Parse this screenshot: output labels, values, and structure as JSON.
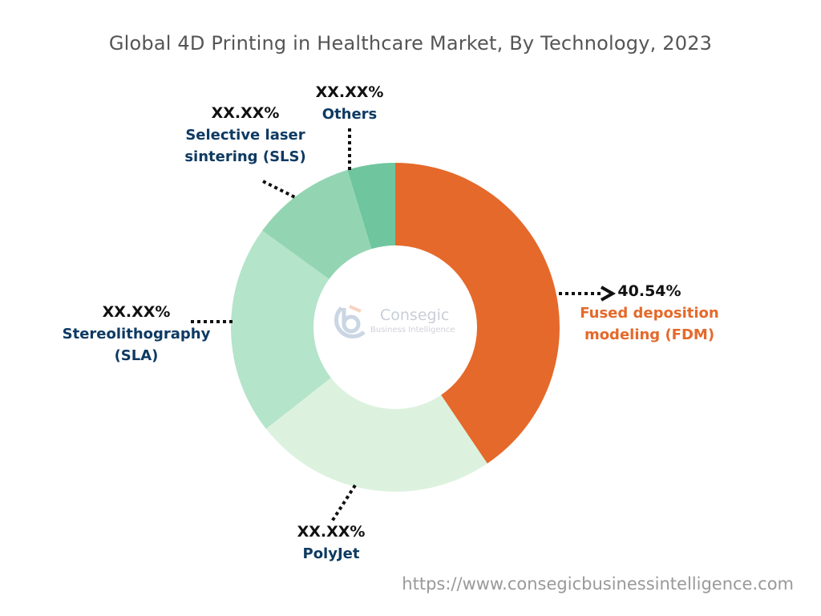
{
  "chart_data": {
    "type": "pie",
    "variant": "donut",
    "title": "Global 4D Printing in Healthcare Market, By Technology, 2023",
    "slices": [
      {
        "name": "Fused deposition modeling (FDM)",
        "label": "40.54%",
        "value": 40.54,
        "color": "#e5692a",
        "name_color": "#e5692a"
      },
      {
        "name": "PolyJet",
        "label": "XX.XX%",
        "value": 23.86,
        "color": "#dcf2df",
        "name_color": "#0e3a63"
      },
      {
        "name": "Stereolithography (SLA)",
        "label": "XX.XX%",
        "value": 20.6,
        "color": "#b4e4ca",
        "name_color": "#0e3a63"
      },
      {
        "name": "Selective laser sintering (SLS)",
        "label": "XX.XX%",
        "value": 10.3,
        "color": "#93d5b3",
        "name_color": "#0e3a63"
      },
      {
        "name": "Others",
        "label": "XX.XX%",
        "value": 4.7,
        "color": "#6fc59e",
        "name_color": "#0e3a63"
      }
    ],
    "start": "top",
    "direction": "clockwise"
  },
  "labels": {
    "fdm": {
      "pct": "40.54%",
      "line1": "Fused deposition",
      "line2": "modeling (FDM)"
    },
    "polyjet": {
      "pct": "XX.XX%",
      "line1": "PolyJet"
    },
    "sla": {
      "pct": "XX.XX%",
      "line1": "Stereolithography",
      "line2": "(SLA)"
    },
    "sls": {
      "pct": "XX.XX%",
      "line1": "Selective laser",
      "line2": "sintering (SLS)"
    },
    "others": {
      "pct": "XX.XX%",
      "line1": "Others"
    }
  },
  "logo": {
    "text": "Consegic",
    "sub": "Business Intelligence"
  },
  "footer": {
    "url": "https://www.consegicbusinessintelligence.com"
  }
}
